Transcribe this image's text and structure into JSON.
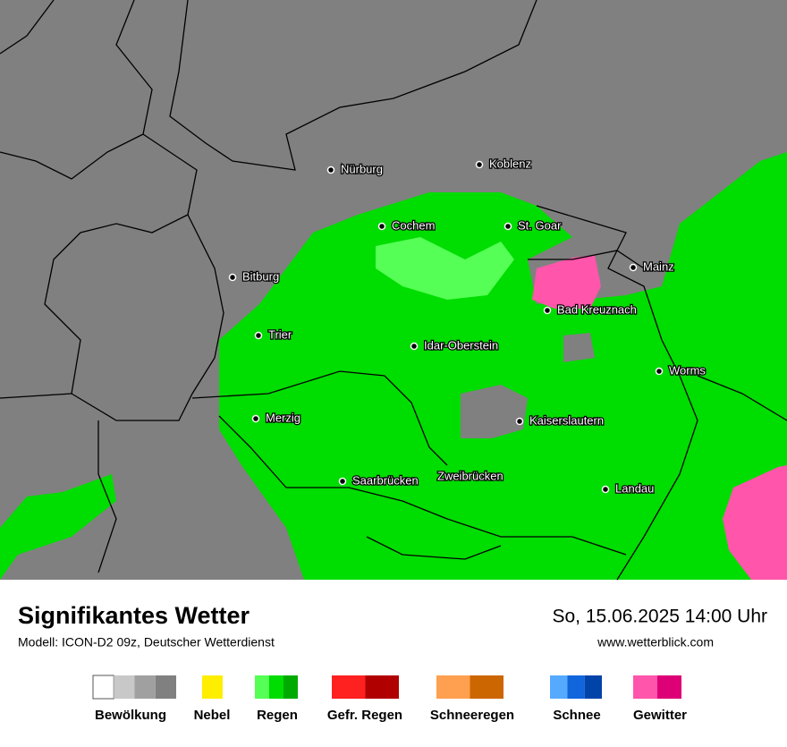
{
  "header": {
    "title": "Signifikantes Wetter",
    "subtitle": "Modell: ICON-D2 09z, Deutscher Wetterdienst",
    "datetime": "So, 15.06.2025 14:00 Uhr",
    "website": "www.wetterblick.com"
  },
  "map": {
    "cities": [
      "Nürburg",
      "Koblenz",
      "Cochem",
      "St. Goar",
      "Mainz",
      "Bitburg",
      "Bad Kreuznach",
      "Trier",
      "Idar-Oberstein",
      "Worms",
      "Merzig",
      "Kaiserslautern",
      "Saarbrücken",
      "Zweibrücken",
      "Landau"
    ]
  },
  "legend": [
    {
      "label": "Bewölkung",
      "colors": [
        "#ffffff",
        "#c8c8c8",
        "#a0a0a0",
        "#808080"
      ]
    },
    {
      "label": "Nebel",
      "colors": [
        "#ffee00"
      ]
    },
    {
      "label": "Regen",
      "colors": [
        "#55ff55",
        "#00dd00",
        "#00aa00"
      ]
    },
    {
      "label": "Gefr. Regen",
      "colors": [
        "#ff2020",
        "#b00000"
      ]
    },
    {
      "label": "Schneeregen",
      "colors": [
        "#ffa050",
        "#cc6600"
      ]
    },
    {
      "label": "Schnee",
      "colors": [
        "#55aaff",
        "#1166dd",
        "#0044aa"
      ]
    },
    {
      "label": "Gewitter",
      "colors": [
        "#ff55aa",
        "#dd0077"
      ]
    }
  ]
}
